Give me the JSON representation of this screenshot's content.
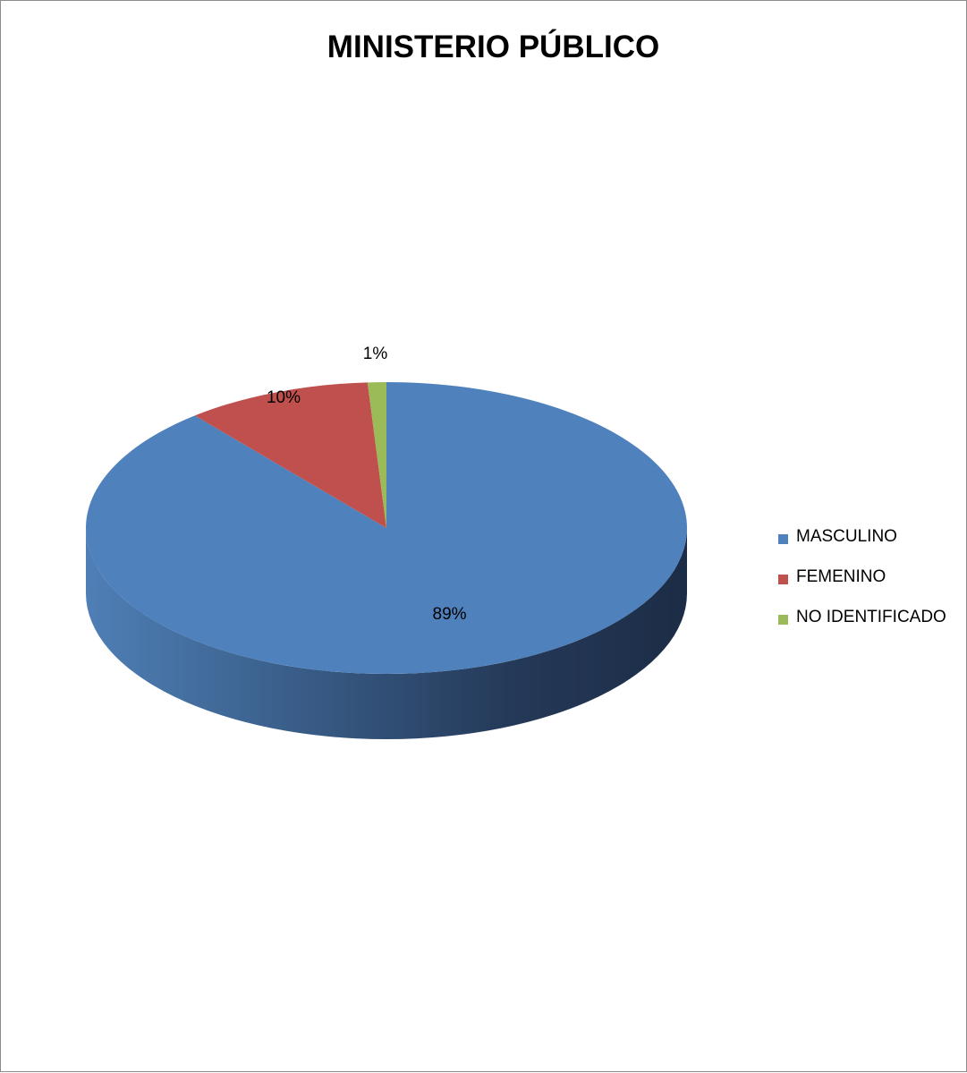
{
  "chart_data": {
    "type": "pie",
    "title": "MINISTERIO PÚBLICO",
    "categories": [
      "MASCULINO",
      "FEMENINO",
      "NO IDENTIFICADO"
    ],
    "values": [
      89,
      10,
      1
    ],
    "data_labels": [
      "89%",
      "10%",
      "1%"
    ],
    "colors": [
      "#4f81bd",
      "#c0504d",
      "#9bbb59"
    ],
    "legend_position": "right",
    "style": "3d"
  }
}
